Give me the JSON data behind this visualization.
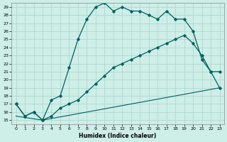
{
  "xlabel": "Humidex (Indice chaleur)",
  "bg_color": "#ceeee8",
  "grid_color": "#b0d8d0",
  "line_color": "#006060",
  "ylim": [
    14.5,
    29.5
  ],
  "xlim": [
    -0.5,
    23.5
  ],
  "yticks": [
    15,
    16,
    17,
    18,
    19,
    20,
    21,
    22,
    23,
    24,
    25,
    26,
    27,
    28,
    29
  ],
  "xticks": [
    0,
    1,
    2,
    3,
    4,
    5,
    6,
    7,
    8,
    9,
    10,
    11,
    12,
    13,
    14,
    15,
    16,
    17,
    18,
    19,
    20,
    21,
    22,
    23
  ],
  "series": [
    {
      "x": [
        0,
        3,
        23
      ],
      "y": [
        15.5,
        15.0,
        19.0
      ],
      "style": "-",
      "marker": null,
      "lw": 0.8
    },
    {
      "x": [
        0,
        1,
        2,
        3,
        4,
        5,
        6,
        7,
        8,
        9,
        10,
        11,
        12,
        13,
        14,
        15,
        16,
        17,
        18,
        19,
        20,
        21,
        22,
        23
      ],
      "y": [
        17.0,
        15.5,
        16.0,
        15.0,
        15.5,
        16.5,
        17.0,
        17.5,
        18.5,
        19.5,
        20.5,
        21.5,
        22.0,
        22.5,
        23.0,
        23.5,
        24.0,
        24.5,
        25.0,
        25.5,
        24.5,
        23.0,
        21.0,
        19.0
      ],
      "style": "-",
      "marker": "D",
      "lw": 0.9
    },
    {
      "x": [
        0,
        1,
        2,
        3,
        4,
        5,
        6,
        7,
        8,
        9,
        10,
        11,
        12,
        13,
        14,
        15,
        16,
        17,
        18,
        19,
        20,
        21,
        22,
        23
      ],
      "y": [
        17.0,
        15.5,
        16.0,
        15.0,
        17.5,
        18.0,
        21.5,
        25.0,
        27.5,
        29.0,
        29.5,
        28.5,
        29.0,
        28.5,
        28.5,
        28.0,
        27.5,
        28.5,
        27.5,
        27.5,
        26.0,
        22.5,
        21.0,
        21.0
      ],
      "style": "-",
      "marker": "D",
      "lw": 0.9
    }
  ]
}
